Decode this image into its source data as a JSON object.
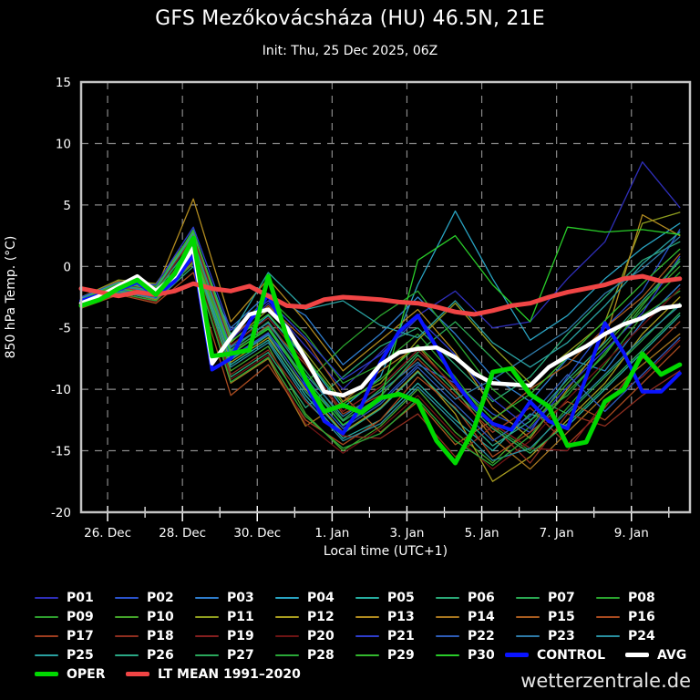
{
  "header": {
    "title": "GFS Mezőkovácsháza (HU) 46.5N, 21E",
    "subtitle": "Init: Thu, 25 Dec 2025, 06Z"
  },
  "footer": {
    "brand": "wetterzentrale.de"
  },
  "colors": {
    "background": "#000000",
    "frame": "#c4c4c4",
    "grid": "#8a8a8a",
    "text": "#ffffff",
    "control": "#0a14ff",
    "avg": "#ffffff",
    "oper": "#00d800",
    "lt_mean": "#f04545"
  },
  "chart_data": {
    "type": "line",
    "title": "GFS Mezőkovácsháza (HU) 46.5N, 21E",
    "subtitle": "Init: Thu, 25 Dec 2025, 06Z",
    "xlabel": "Local time (UTC+1)",
    "ylabel": "850 hPa Temp. (°C)",
    "ylim": [
      -20,
      15
    ],
    "yticks": [
      15,
      10,
      5,
      0,
      -5,
      -10,
      -15,
      -20
    ],
    "grid": "dashed",
    "legend_position": "bottom",
    "x_axis_note": "day offsets from Thu 25 Dec 2025 07:00 local (init 06Z), 16-day GFS ensemble",
    "day_span": [
      0,
      16.27
    ],
    "xticks": [
      {
        "label": "26. Dec",
        "day": 0.708
      },
      {
        "label": "28. Dec",
        "day": 2.708
      },
      {
        "label": "30. Dec",
        "day": 4.708
      },
      {
        "label": "1. Jan",
        "day": 6.708
      },
      {
        "label": "3. Jan",
        "day": 8.708
      },
      {
        "label": "5. Jan",
        "day": 10.708
      },
      {
        "label": "7. Jan",
        "day": 12.708
      },
      {
        "label": "9. Jan",
        "day": 14.708
      }
    ],
    "minor_tick_days": [
      1.708,
      3.708,
      5.708,
      7.708,
      9.708,
      11.708,
      13.708,
      15.708
    ],
    "members_x_step": 1.0,
    "main_x_step": 0.5,
    "members": [
      {
        "name": "P01",
        "color": "#2e2eb8",
        "values": [
          -2.5,
          -1.2,
          -2.0,
          2.0,
          -6.0,
          -3.0,
          -6.5,
          -10.0,
          -7.0,
          -4.0,
          -2.0,
          -5.0,
          -4.5,
          -1.0,
          2.0,
          8.5,
          4.8
        ]
      },
      {
        "name": "P02",
        "color": "#2a52cc",
        "values": [
          -3.2,
          -2.0,
          -2.5,
          1.0,
          -7.5,
          -5.5,
          -9.0,
          -13.0,
          -11.0,
          -8.0,
          -9.5,
          -12.0,
          -13.5,
          -9.0,
          -5.0,
          -2.0,
          3.0
        ]
      },
      {
        "name": "P03",
        "color": "#2e7ccc",
        "values": [
          -2.8,
          -1.5,
          -1.5,
          0.5,
          -5.0,
          -2.2,
          -4.0,
          -8.0,
          -5.5,
          -2.5,
          -5.5,
          -9.0,
          -11.0,
          -7.5,
          -8.5,
          -4.5,
          -1.5
        ]
      },
      {
        "name": "P04",
        "color": "#29a3c2",
        "values": [
          -3.0,
          -1.8,
          -2.2,
          1.5,
          -6.5,
          -4.0,
          -7.5,
          -11.5,
          -9.0,
          -1.5,
          4.5,
          -1.0,
          -6.0,
          -4.0,
          -1.0,
          1.5,
          3.5
        ]
      },
      {
        "name": "P05",
        "color": "#26ada0",
        "values": [
          -2.6,
          -1.4,
          -1.8,
          2.5,
          -8.0,
          -6.0,
          -10.5,
          -14.0,
          -12.5,
          -9.5,
          -12.5,
          -15.0,
          -12.0,
          -13.0,
          -10.0,
          -7.0,
          -4.0
        ]
      },
      {
        "name": "P06",
        "color": "#2aa877",
        "values": [
          -3.4,
          -2.2,
          -2.8,
          0.0,
          -9.0,
          -7.0,
          -11.5,
          -9.0,
          -6.5,
          -5.0,
          -8.0,
          -11.0,
          -9.0,
          -5.5,
          -2.5,
          0.5,
          2.0
        ]
      },
      {
        "name": "P07",
        "color": "#2aa852",
        "values": [
          -2.9,
          -1.6,
          -2.0,
          3.0,
          -6.8,
          -4.5,
          -8.5,
          -12.5,
          -10.0,
          -7.0,
          -4.5,
          -7.5,
          -10.5,
          -12.0,
          -9.0,
          -6.0,
          -3.0
        ]
      },
      {
        "name": "P08",
        "color": "#2aa32e",
        "values": [
          -3.1,
          -1.9,
          -2.4,
          1.8,
          -7.2,
          -5.0,
          -9.5,
          -6.5,
          -4.0,
          -2.0,
          -6.0,
          -10.0,
          -12.5,
          -10.5,
          -7.0,
          -3.5,
          -0.5
        ]
      },
      {
        "name": "P09",
        "color": "#2e9e2e",
        "values": [
          -2.7,
          -1.3,
          -1.6,
          2.2,
          -5.5,
          -2.5,
          -5.5,
          -9.5,
          -8.0,
          -5.5,
          -9.0,
          -13.0,
          -15.0,
          -11.5,
          -8.0,
          -4.0,
          -2.0
        ]
      },
      {
        "name": "P10",
        "color": "#44a32a",
        "values": [
          -3.3,
          -2.1,
          -2.6,
          0.8,
          -8.5,
          -6.5,
          -12.0,
          -15.0,
          -13.0,
          -10.0,
          -13.5,
          -16.0,
          -13.0,
          -9.5,
          -6.5,
          -3.0,
          0.0
        ]
      },
      {
        "name": "P11",
        "color": "#8f9e1f",
        "values": [
          -2.5,
          -1.1,
          -1.4,
          2.8,
          -6.2,
          -3.5,
          -7.0,
          -11.0,
          -9.5,
          -6.0,
          -3.0,
          -6.5,
          -9.5,
          -7.0,
          -4.5,
          3.5,
          4.4
        ]
      },
      {
        "name": "P12",
        "color": "#a89c1f",
        "values": [
          -3.0,
          -1.7,
          -2.1,
          1.2,
          -7.8,
          -5.8,
          -10.0,
          -13.5,
          -11.5,
          -8.5,
          -12.0,
          -17.5,
          -15.5,
          -12.5,
          -9.5,
          -5.5,
          -2.5
        ]
      },
      {
        "name": "P13",
        "color": "#b08a1f",
        "values": [
          -2.8,
          -1.5,
          -1.9,
          5.5,
          -4.5,
          -1.0,
          -4.5,
          -8.5,
          -6.0,
          -3.5,
          -7.0,
          -11.5,
          -14.0,
          -10.0,
          -6.0,
          4.2,
          2.5
        ]
      },
      {
        "name": "P14",
        "color": "#a8761f",
        "values": [
          -3.2,
          -2.0,
          -2.7,
          0.4,
          -9.5,
          -7.5,
          -13.0,
          -11.0,
          -8.5,
          -6.5,
          -10.0,
          -14.0,
          -16.5,
          -13.5,
          -10.5,
          -8.0,
          -5.5
        ]
      },
      {
        "name": "P15",
        "color": "#a85c1f",
        "values": [
          -2.6,
          -1.2,
          -1.7,
          2.6,
          -5.8,
          -3.2,
          -6.0,
          -10.5,
          -13.5,
          -11.0,
          -14.5,
          -12.5,
          -10.0,
          -8.0,
          -5.0,
          -2.5,
          1.0
        ]
      },
      {
        "name": "P16",
        "color": "#a84a1f",
        "values": [
          -3.4,
          -2.3,
          -3.0,
          -0.5,
          -10.5,
          -8.0,
          -12.5,
          -14.5,
          -12.5,
          -9.0,
          -11.5,
          -15.5,
          -13.5,
          -11.0,
          -12.5,
          -9.5,
          -6.5
        ]
      },
      {
        "name": "P17",
        "color": "#9e3d1f",
        "values": [
          -2.9,
          -1.7,
          -2.2,
          1.6,
          -7.0,
          -4.8,
          -8.0,
          -12.0,
          -10.5,
          -7.5,
          -10.5,
          -13.5,
          -11.5,
          -14.5,
          -11.5,
          -7.5,
          -4.5
        ]
      },
      {
        "name": "P18",
        "color": "#8f2e1f",
        "values": [
          -3.1,
          -1.8,
          -2.5,
          0.2,
          -8.8,
          -6.8,
          -11.0,
          -13.8,
          -14.0,
          -12.0,
          -15.5,
          -13.0,
          -16.0,
          -12.0,
          -13.0,
          -10.5,
          -8.5
        ]
      },
      {
        "name": "P19",
        "color": "#851f1f",
        "values": [
          -2.7,
          -1.4,
          -2.0,
          2.4,
          -6.4,
          -4.2,
          -7.8,
          -11.8,
          -9.8,
          -6.8,
          -9.8,
          -12.8,
          -14.8,
          -15.0,
          -11.0,
          -9.0,
          -6.0
        ]
      },
      {
        "name": "P20",
        "color": "#6e1414",
        "values": [
          -3.3,
          -2.2,
          -2.9,
          0.6,
          -9.2,
          -7.2,
          -12.8,
          -15.2,
          -13.2,
          -10.5,
          -13.8,
          -16.5,
          -14.2,
          -10.8,
          -7.8,
          -4.8,
          -1.8
        ]
      },
      {
        "name": "P21",
        "color": "#2e3dcc",
        "values": [
          -2.5,
          -1.3,
          -1.5,
          3.2,
          -5.2,
          -2.8,
          -5.8,
          -9.2,
          -7.2,
          -4.2,
          -7.2,
          -10.8,
          -13.2,
          -9.8,
          -6.8,
          -3.8,
          0.8
        ]
      },
      {
        "name": "P22",
        "color": "#2e5cb8",
        "values": [
          -3.0,
          -1.9,
          -2.3,
          1.4,
          -7.4,
          -5.4,
          -9.8,
          -13.2,
          -11.2,
          -8.2,
          -11.2,
          -14.2,
          -12.2,
          -8.8,
          -11.8,
          -8.8,
          -5.8
        ]
      },
      {
        "name": "P23",
        "color": "#2e7aa8",
        "values": [
          -2.8,
          -1.6,
          -2.1,
          2.0,
          -6.6,
          -4.6,
          -8.8,
          -12.2,
          -10.2,
          -7.8,
          -10.8,
          -9.2,
          -7.2,
          -5.2,
          -2.2,
          -0.2,
          2.4
        ]
      },
      {
        "name": "P24",
        "color": "#298fa0",
        "values": [
          -3.2,
          -2.1,
          -2.6,
          1.0,
          -8.2,
          -6.2,
          -10.8,
          -14.2,
          -12.8,
          -9.8,
          -12.8,
          -15.8,
          -14.8,
          -11.8,
          -8.8,
          -5.8,
          -3.2
        ]
      },
      {
        "name": "P25",
        "color": "#29a0a0",
        "values": [
          -2.6,
          -1.3,
          -1.8,
          2.7,
          -5.6,
          -0.5,
          -3.5,
          -2.8,
          -4.8,
          -5.8,
          -2.8,
          -6.2,
          -8.2,
          -6.2,
          -3.2,
          0.2,
          2.8
        ]
      },
      {
        "name": "P26",
        "color": "#2aa885",
        "values": [
          -3.1,
          -2.0,
          -2.4,
          0.9,
          -7.6,
          -5.6,
          -10.2,
          -13.6,
          -11.6,
          -8.6,
          -11.6,
          -14.6,
          -12.6,
          -9.2,
          -6.2,
          -2.8,
          0.4
        ]
      },
      {
        "name": "P27",
        "color": "#2aa85c",
        "values": [
          -2.9,
          -1.5,
          -2.0,
          1.9,
          -6.9,
          -4.9,
          -9.2,
          -12.6,
          -10.6,
          -7.2,
          -10.2,
          -13.2,
          -15.2,
          -12.8,
          -9.8,
          -6.8,
          -3.8
        ]
      },
      {
        "name": "P28",
        "color": "#2aa838",
        "values": [
          -3.3,
          -2.2,
          -2.8,
          0.3,
          -9.4,
          -7.4,
          -12.2,
          -14.8,
          -13.6,
          -10.8,
          -14.2,
          -16.2,
          -13.8,
          -10.2,
          -7.2,
          -3.2,
          0.6
        ]
      },
      {
        "name": "P29",
        "color": "#33b82e",
        "values": [
          -2.7,
          -1.4,
          -1.7,
          2.9,
          -6.1,
          -3.9,
          -7.4,
          -11.2,
          -9.2,
          -6.4,
          -9.4,
          -12.4,
          -10.4,
          -7.4,
          -4.4,
          -1.4,
          1.4
        ]
      },
      {
        "name": "P30",
        "color": "#29cc29",
        "values": [
          -3.0,
          -1.8,
          -2.3,
          1.3,
          -7.1,
          -5.1,
          -9.4,
          -12.9,
          -10.9,
          0.5,
          2.5,
          -1.5,
          -4.5,
          3.2,
          2.8,
          3.0,
          2.6
        ]
      }
    ],
    "main_series": [
      {
        "name": "CONTROL",
        "key": "control",
        "width": 4,
        "values": [
          -2.8,
          -2.3,
          -1.9,
          -1.3,
          -2.4,
          -1.2,
          0.9,
          -8.4,
          -7.5,
          -4.5,
          -2.3,
          -5.5,
          -9.5,
          -12.6,
          -13.6,
          -11.3,
          -7.8,
          -5.3,
          -4.0,
          -6.6,
          -9.4,
          -11.4,
          -12.8,
          -13.3,
          -11.0,
          -12.6,
          -13.2,
          -9.0,
          -4.6,
          -7.0,
          -10.2,
          -10.2,
          -8.7
        ]
      },
      {
        "name": "AVG",
        "key": "avg",
        "width": 4.5,
        "values": [
          -3.0,
          -2.4,
          -1.6,
          -0.8,
          -2.0,
          -0.8,
          1.5,
          -7.9,
          -5.8,
          -3.9,
          -3.5,
          -5.0,
          -7.5,
          -10.2,
          -10.5,
          -9.8,
          -8.0,
          -7.0,
          -6.7,
          -6.6,
          -7.4,
          -8.7,
          -9.5,
          -9.6,
          -9.7,
          -8.2,
          -7.3,
          -6.5,
          -5.5,
          -4.7,
          -4.2,
          -3.4,
          -3.2
        ]
      },
      {
        "name": "LT MEAN 1991–2020",
        "key": "lt_mean",
        "width": 5,
        "values": [
          -1.8,
          -2.1,
          -2.4,
          -2.1,
          -2.3,
          -2.0,
          -1.4,
          -1.8,
          -2.0,
          -1.6,
          -2.4,
          -3.2,
          -3.3,
          -2.7,
          -2.5,
          -2.6,
          -2.7,
          -2.9,
          -3.0,
          -3.3,
          -3.7,
          -3.9,
          -3.6,
          -3.2,
          -3.0,
          -2.5,
          -2.1,
          -1.8,
          -1.5,
          -1.0,
          -0.8,
          -1.2,
          -1.0
        ]
      },
      {
        "name": "OPER",
        "key": "oper",
        "width": 5,
        "values": [
          -3.2,
          -2.7,
          -1.8,
          -1.1,
          -2.3,
          -0.6,
          2.3,
          -7.3,
          -7.1,
          -6.8,
          -0.8,
          -5.8,
          -9.2,
          -11.8,
          -11.3,
          -11.9,
          -10.7,
          -10.4,
          -11.0,
          -14.2,
          -16.0,
          -13.2,
          -8.6,
          -8.3,
          -10.4,
          -11.4,
          -14.6,
          -14.3,
          -11.0,
          -10.0,
          -7.1,
          -8.8,
          -8.0
        ]
      }
    ]
  },
  "legend": {
    "control_label": "CONTROL",
    "avg_label": "AVG",
    "oper_label": "OPER",
    "lt_mean_label": "LT MEAN 1991–2020"
  }
}
